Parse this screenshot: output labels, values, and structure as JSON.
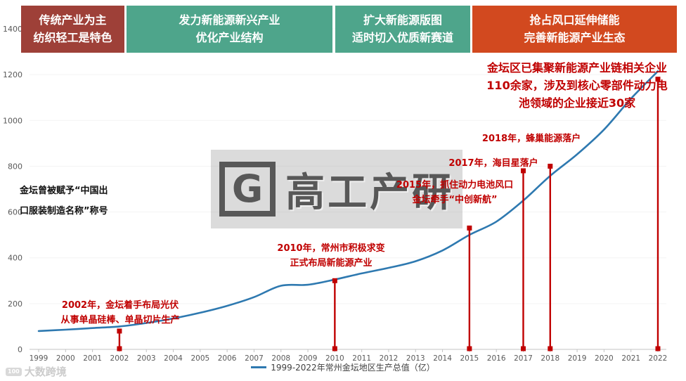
{
  "header_bands": [
    {
      "line1": "传统产业为主",
      "line2": "纺织轻工是特色",
      "color": "#9E4038"
    },
    {
      "line1": "发力新能源新兴产业",
      "line2": "优化产业结构",
      "color": "#4EA58B"
    },
    {
      "line1": "扩大新能源版图",
      "line2": "适时切入优质新赛道",
      "color": "#4EA58B"
    },
    {
      "line1": "抢占风口延伸储能",
      "line2": "完善新能源产业生态",
      "color": "#D2491F"
    }
  ],
  "chart_data": {
    "type": "line",
    "title": "1999-2022年常州金坛地区生产总值（亿）",
    "x": [
      1999,
      2000,
      2001,
      2002,
      2003,
      2004,
      2005,
      2006,
      2007,
      2008,
      2009,
      2010,
      2011,
      2012,
      2013,
      2014,
      2015,
      2016,
      2017,
      2018,
      2019,
      2020,
      2021,
      2022
    ],
    "series": [
      {
        "name": "1999-2022年常州金坛地区生产总值（亿）",
        "color": "#2E79B0",
        "values": [
          80,
          86,
          93,
          100,
          115,
          135,
          160,
          190,
          228,
          278,
          282,
          305,
          332,
          356,
          385,
          432,
          500,
          558,
          650,
          758,
          852,
          960,
          1095,
          1215
        ]
      }
    ],
    "xlabel": "",
    "ylabel": "",
    "ylim": [
      0,
      1400
    ],
    "yticks": [
      0,
      200,
      400,
      600,
      800,
      1000,
      1200,
      1400
    ],
    "grid": "off",
    "legend_position": "bottom",
    "event_color": "#C00000",
    "events": [
      {
        "year": 2002,
        "value": 80
      },
      {
        "year": 2010,
        "value": 300
      },
      {
        "year": 2015,
        "value": 530
      },
      {
        "year": 2017,
        "value": 780
      },
      {
        "year": 2018,
        "value": 800
      },
      {
        "year": 2022,
        "value": 1180
      }
    ]
  },
  "annotations": {
    "left_black": {
      "lines": [
        "金坛曾被赋予“中国出",
        "口服装制造名称”称号"
      ]
    },
    "a2002": {
      "lines": [
        "2002年，金坛着手布局光伏",
        "从事单晶硅棒、单晶切片生产"
      ]
    },
    "a2010": {
      "lines": [
        "2010年，常州市积极求变",
        "正式布局新能源产业"
      ]
    },
    "a2015": {
      "lines": [
        "2015年，抓住动力电池风口",
        "金坛牵手“中创新航”"
      ]
    },
    "a2017": {
      "lines": [
        "2017年，海目星落户"
      ]
    },
    "a2018": {
      "lines": [
        "2018年，蜂巢能源落户"
      ]
    },
    "a_cluster": {
      "lines": [
        "金坛区已集聚新能源产业链相关企业",
        "110余家，涉及到核心零部件动力电",
        "池领域的企业接近30家"
      ]
    }
  },
  "legend": {
    "label": "1999-2022年常州金坛地区生产总值（亿）"
  },
  "watermark": {
    "logo": "G",
    "text": "高工产研"
  },
  "footer_watermark": {
    "icon_label": "100",
    "text": "大数跨境"
  }
}
